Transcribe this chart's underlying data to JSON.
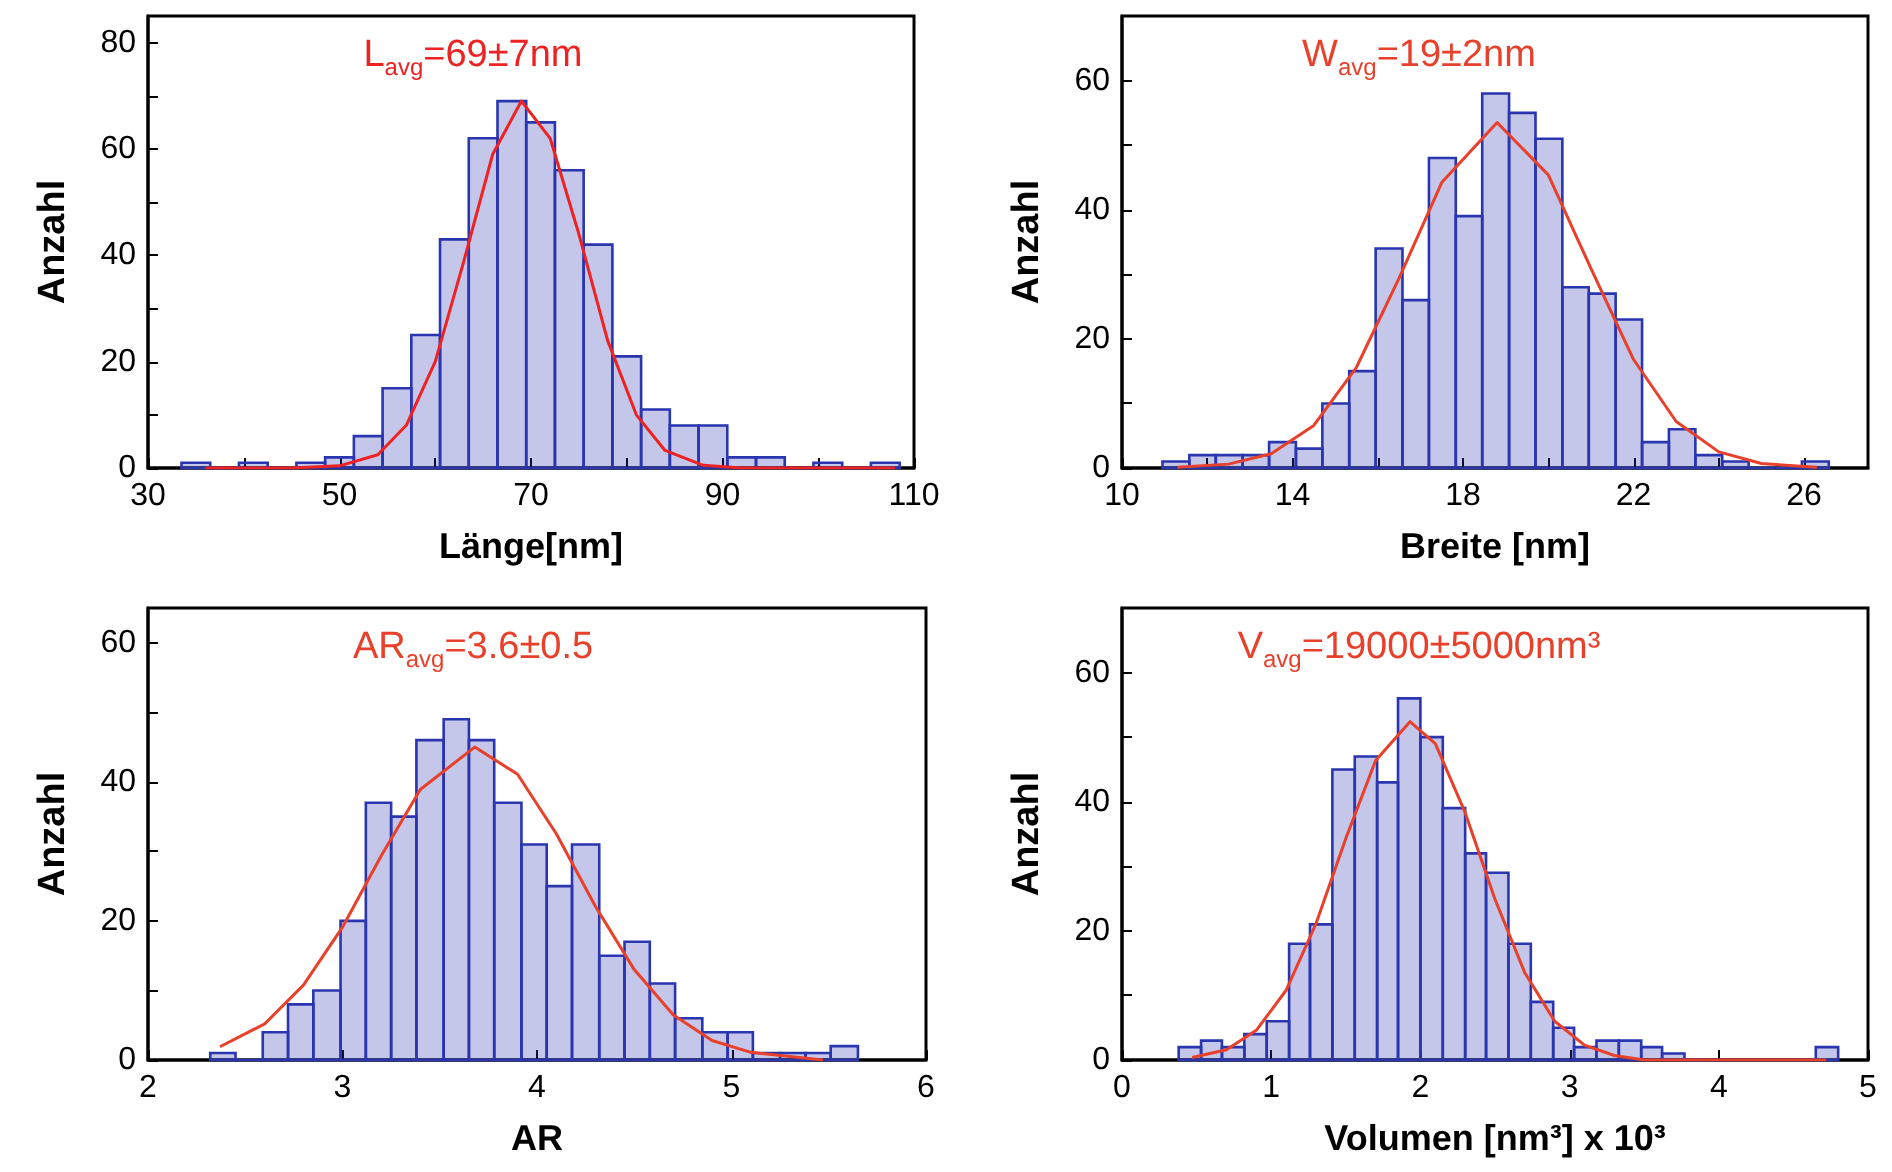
{
  "chart_data": [
    {
      "type": "histogram",
      "xlabel": "Länge[nm]",
      "ylabel": "Anzahl",
      "annotations": [
        "L$_{avg}$=69±7nm"
      ],
      "color": "#2a35b0",
      "bins": [
        33.5,
        36.5,
        39.5,
        42.5,
        45.5,
        48.5,
        51.5,
        54.5,
        57.5,
        60.5,
        63.5,
        66.5,
        69.5,
        72.5,
        75.5,
        78.5,
        81.5,
        84.5,
        87.5,
        90.5,
        93.5,
        96.5,
        99.5,
        102.5,
        105.5,
        108.5
      ],
      "values": [
        1,
        0,
        1,
        0,
        1,
        2,
        6,
        15,
        25,
        43,
        62,
        69,
        65,
        56,
        42,
        21,
        11,
        8,
        8,
        2,
        2,
        0,
        1,
        0,
        1
      ],
      "series": [
        {
          "type": "line",
          "color": "#ee2222",
          "marker": "none",
          "x": [
            36,
            45,
            50,
            54,
            57,
            60,
            63,
            66,
            69,
            72,
            75,
            78,
            81,
            84,
            88,
            92,
            100,
            108
          ],
          "values": [
            0,
            0,
            0.4,
            2.5,
            8.1,
            20,
            39,
            59,
            69,
            62,
            44,
            24,
            10,
            3.3,
            0.5,
            0,
            0,
            0
          ]
        }
      ],
      "xlim": [
        30,
        110
      ],
      "xticks": [
        30,
        {
          "value": 40,
          "label": null
        },
        50,
        {
          "value": 60,
          "label": null
        },
        70,
        {
          "value": 80,
          "label": null
        },
        90,
        {
          "value": 100,
          "label": null
        },
        110
      ],
      "ylim": [
        0,
        85
      ],
      "yticks": [
        0,
        {
          "value": 10,
          "label": null
        },
        20,
        {
          "value": 30,
          "label": null
        },
        40,
        {
          "value": 50,
          "label": null
        },
        60,
        {
          "value": 70,
          "label": null
        },
        80
      ]
    },
    {
      "type": "histogram",
      "xlabel": "Breite [nm]",
      "ylabel": "Anzahl",
      "annotations": [
        "W$_{avg}$=19±2nm"
      ],
      "color": "#2a35b0",
      "bins": [
        10.95,
        11.58,
        12.2,
        12.83,
        13.45,
        14.08,
        14.7,
        15.33,
        15.95,
        16.58,
        17.2,
        17.83,
        18.45,
        19.08,
        19.7,
        20.33,
        20.95,
        21.58,
        22.2,
        22.83,
        23.45,
        24.08,
        24.7,
        25.33,
        25.95,
        26.58
      ],
      "values": [
        1,
        2,
        2,
        2,
        4,
        3,
        10,
        15,
        34,
        26,
        48,
        39,
        58,
        55,
        51,
        28,
        27,
        23,
        4,
        6,
        2,
        1,
        0,
        0,
        1
      ],
      "series": [
        {
          "type": "line",
          "color": "#e8402a",
          "marker": "none",
          "x": [
            11.3,
            12.5,
            13.5,
            14.5,
            15.5,
            16.5,
            17.5,
            18.8,
            20,
            21,
            22,
            23,
            24,
            25,
            26.3
          ],
          "values": [
            0.1,
            0.6,
            2.2,
            6.6,
            15.6,
            29.4,
            44.2,
            53.5,
            45.4,
            30.9,
            16.8,
            7.2,
            2.5,
            0.7,
            0.1
          ]
        }
      ],
      "xlim": [
        10,
        27.5
      ],
      "xticks": [
        10,
        {
          "value": 12,
          "label": null
        },
        14,
        {
          "value": 16,
          "label": null
        },
        18,
        {
          "value": 20,
          "label": null
        },
        22,
        {
          "value": 24,
          "label": null
        },
        26
      ],
      "ylim": [
        0,
        70
      ],
      "yticks": [
        0,
        {
          "value": 10,
          "label": null
        },
        20,
        {
          "value": 30,
          "label": null
        },
        40,
        {
          "value": 50,
          "label": null
        },
        60
      ]
    },
    {
      "type": "histogram",
      "xlabel": "AR",
      "ylabel": "Anzahl",
      "annotations": [
        "AR$_{avg}$=3.6±0.5"
      ],
      "color": "#2a35b0",
      "bins": [
        2.32,
        2.45,
        2.59,
        2.72,
        2.85,
        2.99,
        3.12,
        3.25,
        3.38,
        3.52,
        3.65,
        3.78,
        3.92,
        4.05,
        4.18,
        4.32,
        4.45,
        4.58,
        4.71,
        4.85,
        4.98,
        5.11,
        5.25,
        5.38,
        5.51,
        5.65
      ],
      "values": [
        1,
        0,
        4,
        8,
        10,
        20,
        37,
        35,
        46,
        49,
        46,
        37,
        31,
        25,
        31,
        15,
        17,
        11,
        6,
        4,
        4,
        1,
        1,
        1,
        2
      ],
      "series": [
        {
          "type": "line",
          "color": "#e8402a",
          "marker": "none",
          "x": [
            2.37,
            2.6,
            2.8,
            3.0,
            3.2,
            3.4,
            3.68,
            3.9,
            4.1,
            4.3,
            4.5,
            4.7,
            4.9,
            5.1,
            5.47
          ],
          "values": [
            1.9,
            5.2,
            10.8,
            19.1,
            29.4,
            38.9,
            45,
            41.1,
            32.5,
            22.1,
            13,
            6.5,
            2.8,
            1.1,
            0
          ]
        }
      ],
      "xlim": [
        2,
        6
      ],
      "xticks": [
        2,
        3,
        4,
        5,
        6
      ],
      "ylim": [
        0,
        65
      ],
      "yticks": [
        0,
        {
          "value": 10,
          "label": null
        },
        20,
        {
          "value": 30,
          "label": null
        },
        40,
        {
          "value": 50,
          "label": null
        },
        60
      ]
    },
    {
      "type": "histogram",
      "xlabel": "Volumen [nm³] x 10³",
      "ylabel": "Anzahl",
      "annotations": [
        "V$_{avg}$=19000±5000nm³"
      ],
      "color": "#2a35b0",
      "bins": [
        0.38,
        0.53,
        0.67,
        0.82,
        0.97,
        1.12,
        1.26,
        1.41,
        1.56,
        1.71,
        1.85,
        2.0,
        2.15,
        2.3,
        2.44,
        2.59,
        2.74,
        2.89,
        3.03,
        3.18,
        3.33,
        3.48,
        3.62,
        3.77,
        3.92,
        4.07,
        4.21,
        4.36,
        4.51,
        4.65,
        4.8
      ],
      "values": [
        2,
        3,
        2,
        4,
        6,
        18,
        21,
        45,
        47,
        43,
        56,
        50,
        39,
        32,
        29,
        18,
        9,
        5,
        2,
        3,
        3,
        2,
        1,
        0,
        0,
        0,
        0,
        0,
        0,
        2
      ],
      "series": [
        {
          "type": "line",
          "color": "#e8402a",
          "marker": "none",
          "x": [
            0.47,
            0.7,
            0.9,
            1.1,
            1.3,
            1.5,
            1.7,
            1.93,
            2.1,
            2.3,
            2.5,
            2.7,
            2.9,
            3.1,
            3.3,
            3.5,
            4.72
          ],
          "values": [
            0.4,
            1.6,
            4.6,
            10.8,
            21.1,
            34.3,
            46.4,
            52.4,
            49,
            38.3,
            24.9,
            13.5,
            6,
            2.3,
            0.7,
            0,
            0
          ]
        }
      ],
      "xlim": [
        0,
        5
      ],
      "xticks": [
        0,
        1,
        2,
        3,
        4,
        5
      ],
      "ylim": [
        0,
        70
      ],
      "yticks": [
        0,
        {
          "value": 10,
          "label": null
        },
        20,
        {
          "value": 30,
          "label": null
        },
        40,
        {
          "value": 50,
          "label": null
        },
        60
      ]
    }
  ]
}
